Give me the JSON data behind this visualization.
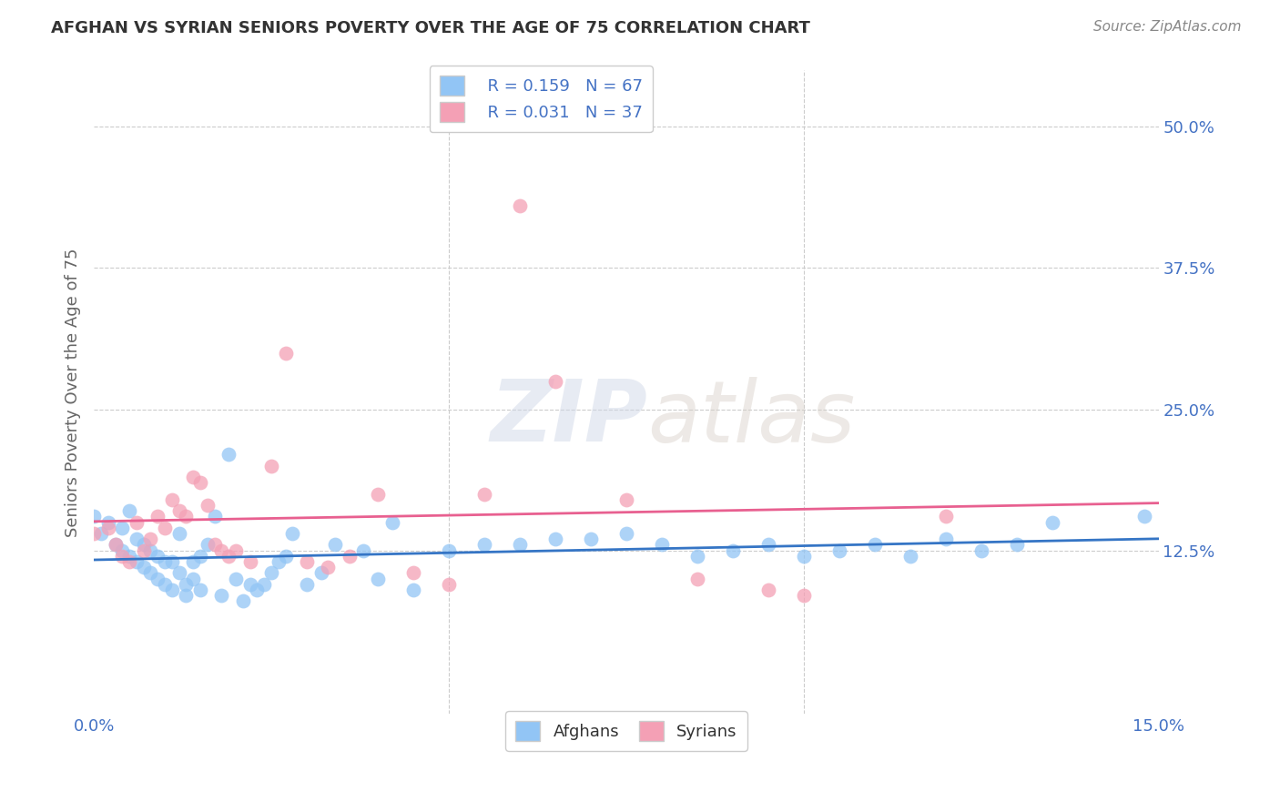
{
  "title": "AFGHAN VS SYRIAN SENIORS POVERTY OVER THE AGE OF 75 CORRELATION CHART",
  "source": "Source: ZipAtlas.com",
  "ylabel": "Seniors Poverty Over the Age of 75",
  "xlim": [
    0.0,
    0.15
  ],
  "ylim": [
    -0.02,
    0.55
  ],
  "ytick_positions": [
    0.125,
    0.25,
    0.375,
    0.5
  ],
  "xtick_positions": [
    0.0,
    0.15
  ],
  "afghan_R": "0.159",
  "afghan_N": "67",
  "syrian_R": "0.031",
  "syrian_N": "37",
  "afghan_color": "#92C5F5",
  "syrian_color": "#F4A0B5",
  "afghan_line_color": "#3575C5",
  "syrian_line_color": "#E86090",
  "watermark_zip": "ZIP",
  "watermark_atlas": "atlas",
  "background_color": "#ffffff",
  "grid_color": "#cccccc",
  "title_color": "#333333",
  "source_color": "#888888",
  "axis_label_color": "#666666",
  "tick_label_color": "#4472c4",
  "afghan_points_x": [
    0.0,
    0.001,
    0.002,
    0.003,
    0.004,
    0.004,
    0.005,
    0.005,
    0.006,
    0.006,
    0.007,
    0.007,
    0.008,
    0.008,
    0.009,
    0.009,
    0.01,
    0.01,
    0.011,
    0.011,
    0.012,
    0.012,
    0.013,
    0.013,
    0.014,
    0.014,
    0.015,
    0.015,
    0.016,
    0.017,
    0.018,
    0.019,
    0.02,
    0.021,
    0.022,
    0.023,
    0.024,
    0.025,
    0.026,
    0.027,
    0.028,
    0.03,
    0.032,
    0.034,
    0.038,
    0.04,
    0.042,
    0.045,
    0.05,
    0.055,
    0.06,
    0.065,
    0.07,
    0.075,
    0.08,
    0.085,
    0.09,
    0.095,
    0.1,
    0.105,
    0.11,
    0.115,
    0.12,
    0.125,
    0.13,
    0.135,
    0.148
  ],
  "afghan_points_y": [
    0.155,
    0.14,
    0.15,
    0.13,
    0.125,
    0.145,
    0.12,
    0.16,
    0.115,
    0.135,
    0.11,
    0.13,
    0.105,
    0.125,
    0.1,
    0.12,
    0.095,
    0.115,
    0.09,
    0.115,
    0.14,
    0.105,
    0.095,
    0.085,
    0.115,
    0.1,
    0.12,
    0.09,
    0.13,
    0.155,
    0.085,
    0.21,
    0.1,
    0.08,
    0.095,
    0.09,
    0.095,
    0.105,
    0.115,
    0.12,
    0.14,
    0.095,
    0.105,
    0.13,
    0.125,
    0.1,
    0.15,
    0.09,
    0.125,
    0.13,
    0.13,
    0.135,
    0.135,
    0.14,
    0.13,
    0.12,
    0.125,
    0.13,
    0.12,
    0.125,
    0.13,
    0.12,
    0.135,
    0.125,
    0.13,
    0.15,
    0.155
  ],
  "syrian_points_x": [
    0.0,
    0.002,
    0.003,
    0.004,
    0.005,
    0.006,
    0.007,
    0.008,
    0.009,
    0.01,
    0.011,
    0.012,
    0.013,
    0.014,
    0.015,
    0.016,
    0.017,
    0.018,
    0.019,
    0.02,
    0.022,
    0.025,
    0.027,
    0.03,
    0.033,
    0.036,
    0.04,
    0.045,
    0.05,
    0.055,
    0.06,
    0.065,
    0.075,
    0.085,
    0.095,
    0.1,
    0.12
  ],
  "syrian_points_y": [
    0.14,
    0.145,
    0.13,
    0.12,
    0.115,
    0.15,
    0.125,
    0.135,
    0.155,
    0.145,
    0.17,
    0.16,
    0.155,
    0.19,
    0.185,
    0.165,
    0.13,
    0.125,
    0.12,
    0.125,
    0.115,
    0.2,
    0.3,
    0.115,
    0.11,
    0.12,
    0.175,
    0.105,
    0.095,
    0.175,
    0.43,
    0.275,
    0.17,
    0.1,
    0.09,
    0.085,
    0.155
  ]
}
